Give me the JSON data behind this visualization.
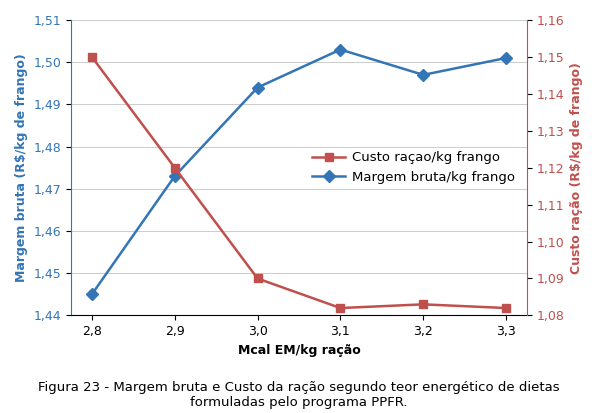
{
  "x": [
    2.8,
    2.9,
    3.0,
    3.1,
    3.2,
    3.3
  ],
  "margem_bruta": [
    1.445,
    1.473,
    1.494,
    1.503,
    1.497,
    1.501
  ],
  "custo_racao": [
    1.15,
    1.12,
    1.09,
    1.082,
    1.083,
    1.082
  ],
  "margem_color": "#3375B5",
  "custo_color": "#C0504D",
  "ylabel_left": "Margem bruta (R$/kg de frango)",
  "ylabel_right": "Custo ração (R$/kg de frango)",
  "xlabel": "Mcal EM/kg ração",
  "ylim_left": [
    1.44,
    1.51
  ],
  "ylim_right": [
    1.08,
    1.16
  ],
  "yticks_left": [
    1.44,
    1.45,
    1.46,
    1.47,
    1.48,
    1.49,
    1.5,
    1.51
  ],
  "yticks_right": [
    1.08,
    1.09,
    1.1,
    1.11,
    1.12,
    1.13,
    1.14,
    1.15,
    1.16
  ],
  "xticks": [
    2.8,
    2.9,
    3.0,
    3.1,
    3.2,
    3.3
  ],
  "legend_margem": "Margem bruta/kg frango",
  "legend_custo": "Custo raçao/kg frango",
  "caption": "Figura 23 - Margem bruta e Custo da ração segundo teor energético de dietas\nformuladas pelo programa PPFR.",
  "caption_fontsize": 9.5,
  "axis_label_fontsize": 9.0,
  "tick_fontsize": 9.0,
  "legend_fontsize": 9.5,
  "background_color": "#FFFFFF",
  "grid_color": "#CCCCCC"
}
